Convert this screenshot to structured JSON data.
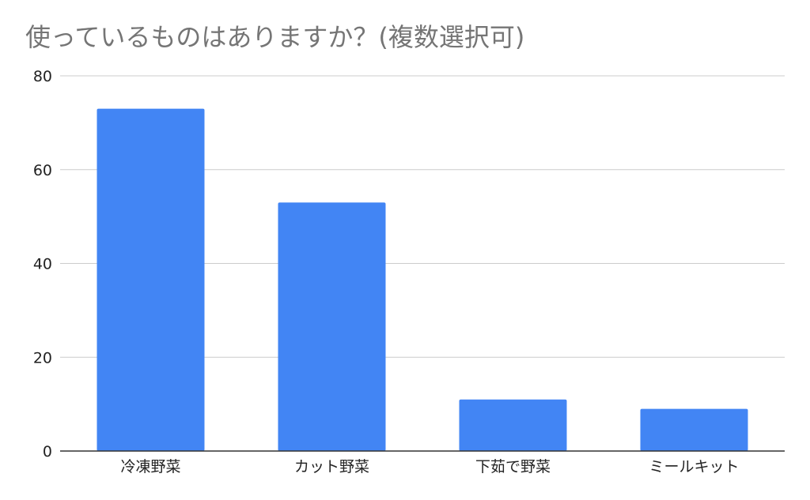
{
  "chart_data": {
    "type": "bar",
    "title": "使っているものはありますか？(複数選択可)",
    "xlabel": "",
    "ylabel": "",
    "categories": [
      "冷凍野菜",
      "カット野菜",
      "下茹で野菜",
      "ミールキット"
    ],
    "values": [
      73,
      53,
      11,
      9
    ],
    "ylim": [
      0,
      80
    ],
    "yticks": [
      0,
      20,
      40,
      60,
      80
    ],
    "grid": true,
    "legend": "none",
    "colors": {
      "bar": "#4285f4",
      "grid": "#cccccc",
      "axis": "#333333",
      "title": "#757575"
    }
  }
}
